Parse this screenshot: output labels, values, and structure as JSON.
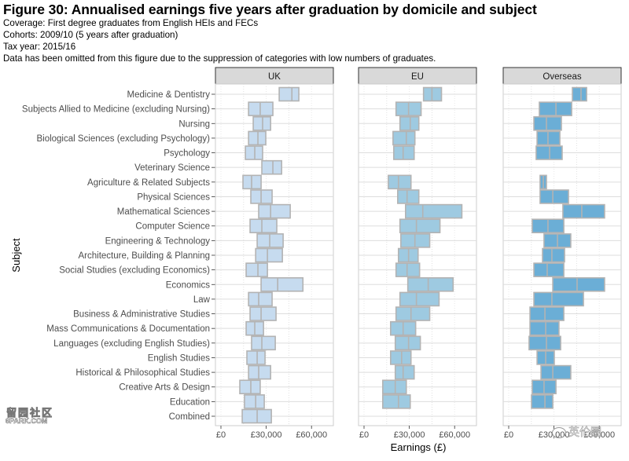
{
  "header": {
    "title": "Figure 30: Annualised earnings five years after graduation by domicile and subject",
    "coverage": "Coverage: First degree graduates from English HEIs and FECs",
    "cohorts": "Cohorts: 2009/10 (5 years after graduation)",
    "tax_year": "Tax year: 2015/16",
    "note": "Data has been omitted from this figure due to the suppression of categories with low numbers of graduates."
  },
  "watermarks": {
    "left_line1": "留园社区",
    "left_line2": "6PARK.COM",
    "right": "英伦圈"
  },
  "chart_data": {
    "type": "boxplot-range",
    "title": "Figure 30: Annualised earnings five years after graduation by domicile and subject",
    "xlabel": "Earnings (£)",
    "ylabel": "Subject",
    "xlim": [
      0,
      75000
    ],
    "xticks": [
      0,
      30000,
      60000
    ],
    "xtick_labels": [
      "£0",
      "£30,000",
      "£60,000"
    ],
    "minor_gridlines": [
      15000,
      45000
    ],
    "grid": true,
    "categories": [
      "Medicine & Dentistry",
      "Subjects Allied to Medicine (excluding Nursing)",
      "Nursing",
      "Biological Sciences (excluding Psychology)",
      "Psychology",
      "Veterinary Science",
      "Agriculture & Related Subjects",
      "Physical Sciences",
      "Mathematical Sciences",
      "Computer Science",
      "Engineering & Technology",
      "Architecture, Building & Planning",
      "Social Studies (excluding Economics)",
      "Economics",
      "Law",
      "Business & Administrative Studies",
      "Mass Communications & Documentation",
      "Languages (excluding English Studies)",
      "English Studies",
      "Historical & Philosophical Studies",
      "Creative Arts & Design",
      "Education",
      "Combined"
    ],
    "value_fields": [
      "lower_quartile",
      "median",
      "upper_quartile"
    ],
    "panels": [
      {
        "name": "UK",
        "color": "#c6dbef",
        "values": [
          [
            38600,
            47000,
            51600
          ],
          [
            18300,
            26000,
            34400
          ],
          [
            21400,
            27600,
            32900
          ],
          [
            18300,
            24500,
            29700
          ],
          [
            16200,
            22400,
            27600
          ],
          [
            27100,
            34400,
            40200
          ],
          [
            14600,
            20300,
            26600
          ],
          [
            19800,
            26600,
            33900
          ],
          [
            25000,
            32900,
            45900
          ],
          [
            19300,
            27100,
            37000
          ],
          [
            24000,
            32300,
            41200
          ],
          [
            23000,
            30800,
            40700
          ],
          [
            16700,
            24500,
            30800
          ],
          [
            26600,
            37600,
            54300
          ],
          [
            18300,
            25000,
            33900
          ],
          [
            19300,
            26600,
            36500
          ],
          [
            16700,
            22400,
            28200
          ],
          [
            20300,
            27100,
            36000
          ],
          [
            17200,
            24000,
            29200
          ],
          [
            18300,
            25000,
            32900
          ],
          [
            12500,
            19800,
            26000
          ],
          [
            15600,
            23000,
            28700
          ],
          [
            14100,
            24000,
            33400
          ]
        ]
      },
      {
        "name": "EU",
        "color": "#9ecae1",
        "values": [
          [
            39400,
            45000,
            51300
          ],
          [
            21200,
            29500,
            37800
          ],
          [
            23800,
            30600,
            36300
          ],
          [
            19200,
            28000,
            33700
          ],
          [
            19700,
            25900,
            33200
          ],
          null,
          [
            16100,
            22800,
            31100
          ],
          [
            22300,
            28500,
            36300
          ],
          [
            27500,
            38900,
            64800
          ],
          [
            23800,
            34700,
            50300
          ],
          [
            24400,
            33700,
            43500
          ],
          [
            22800,
            29500,
            35800
          ],
          [
            21200,
            28500,
            36800
          ],
          [
            29000,
            42500,
            59000
          ],
          [
            23800,
            34700,
            49700
          ],
          [
            21200,
            31100,
            43500
          ],
          [
            17600,
            25900,
            34200
          ],
          [
            20700,
            29500,
            37300
          ],
          [
            17600,
            24900,
            31100
          ],
          [
            20700,
            25900,
            33200
          ],
          [
            12400,
            20700,
            28000
          ],
          [
            12400,
            22800,
            30600
          ],
          null
        ]
      },
      {
        "name": "Overseas",
        "color": "#6baed6",
        "values": [
          [
            42200,
            47900,
            51600
          ],
          [
            20300,
            31300,
            41700
          ],
          [
            16700,
            25000,
            34900
          ],
          [
            18800,
            26000,
            33900
          ],
          [
            18200,
            27100,
            35400
          ],
          null,
          [
            20800,
            22900,
            25000
          ],
          [
            20800,
            29200,
            39600
          ],
          [
            35900,
            48400,
            63500
          ],
          [
            15600,
            26000,
            36500
          ],
          [
            23400,
            32300,
            41100
          ],
          [
            22400,
            28600,
            37000
          ],
          [
            16700,
            25500,
            36500
          ],
          [
            29200,
            45300,
            63500
          ],
          [
            16700,
            28600,
            49500
          ],
          [
            14100,
            24000,
            36500
          ],
          [
            14100,
            24500,
            33300
          ],
          [
            13500,
            25000,
            34400
          ],
          [
            18800,
            24500,
            30200
          ],
          [
            21400,
            29200,
            41100
          ],
          [
            15600,
            23400,
            31300
          ],
          [
            15100,
            24000,
            29200
          ],
          null
        ]
      }
    ]
  }
}
